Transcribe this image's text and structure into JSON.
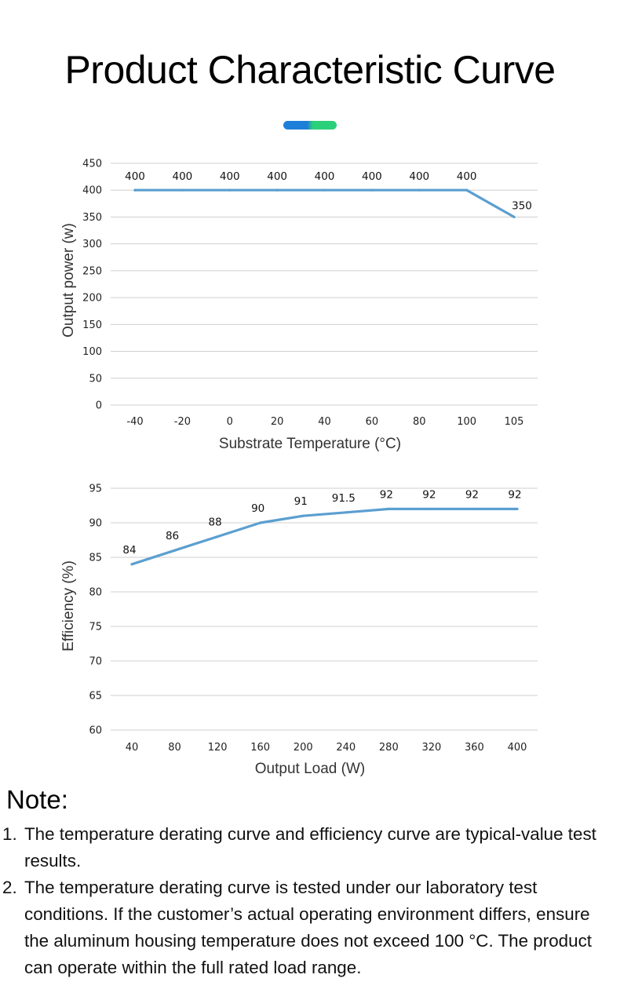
{
  "page": {
    "title": "Product Characteristic Curve",
    "accent_colors": [
      "#1e7fd8",
      "#2bd07a"
    ]
  },
  "chart_data": [
    {
      "type": "line",
      "title": "",
      "x": [
        "-40",
        "-20",
        "0",
        "20",
        "40",
        "60",
        "80",
        "100",
        "105"
      ],
      "values": [
        400,
        400,
        400,
        400,
        400,
        400,
        400,
        400,
        350
      ],
      "xlabel": "Substrate Temperature (°C)",
      "ylabel": "Output power (w)",
      "ylim": [
        0,
        450
      ],
      "yticks": [
        0,
        50,
        100,
        150,
        200,
        250,
        300,
        350,
        400,
        450
      ],
      "grid": true,
      "line_color": "#5b9fd0"
    },
    {
      "type": "line",
      "title": "",
      "x": [
        "40",
        "80",
        "120",
        "160",
        "200",
        "240",
        "280",
        "320",
        "360",
        "400"
      ],
      "values": [
        84,
        86,
        88,
        90,
        91,
        91.5,
        92,
        92,
        92,
        92
      ],
      "xlabel": "Output Load (W)",
      "ylabel": "Efficiency (%)",
      "ylim": [
        60,
        95
      ],
      "yticks": [
        60,
        65,
        70,
        75,
        80,
        85,
        90,
        95
      ],
      "grid": true,
      "line_color": "#5b9fd0"
    }
  ],
  "notes": {
    "heading": "Note:",
    "items": [
      {
        "num": "1.",
        "text": "The temperature derating curve and efficiency curve are typical-value test results."
      },
      {
        "num": "2.",
        "text": "The temperature derating curve is tested under our laboratory test conditions. If the customer’s actual operating environment differs, ensure the aluminum housing temperature does not exceed 100 °C. The product can operate within the full rated load range."
      }
    ]
  }
}
